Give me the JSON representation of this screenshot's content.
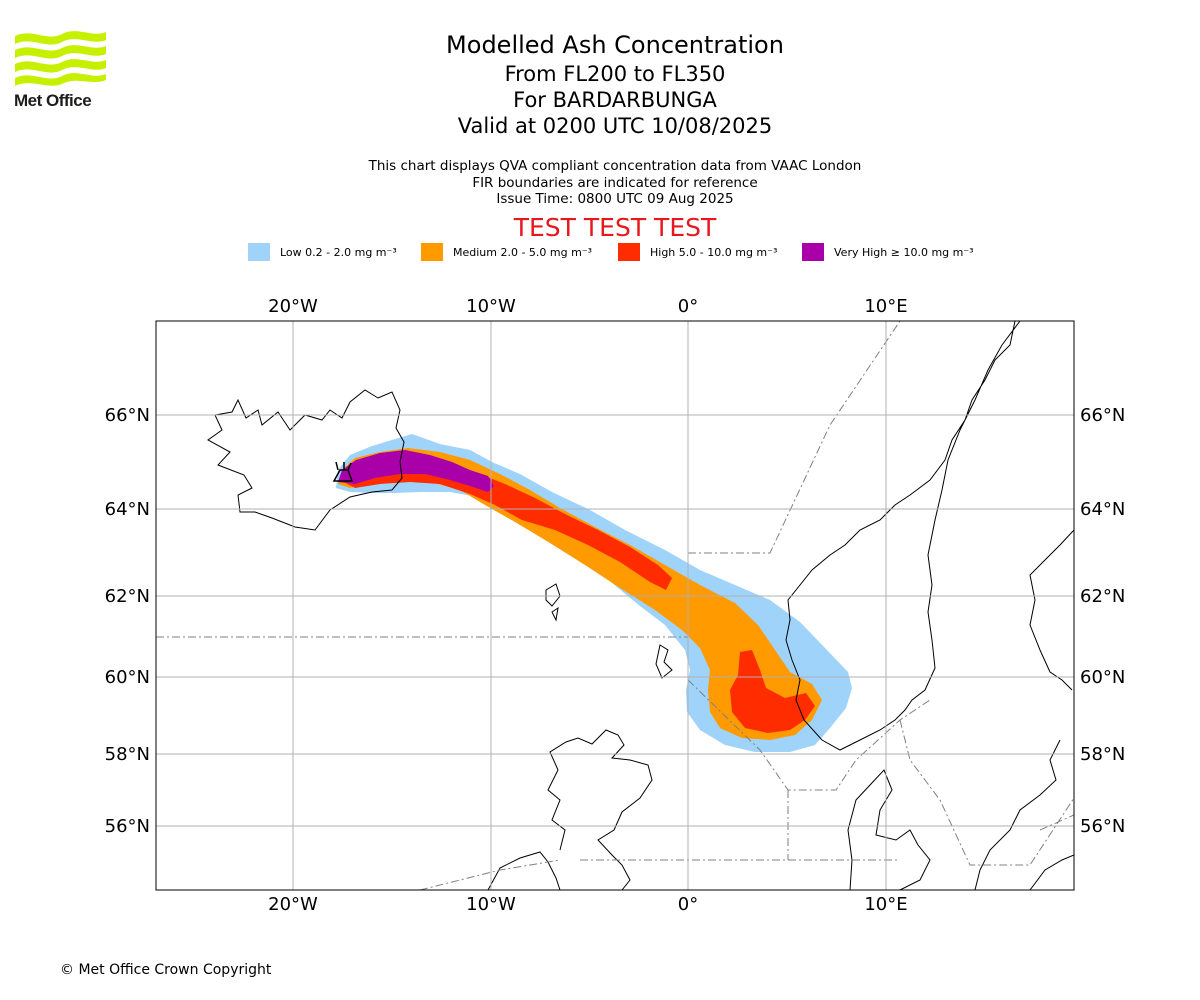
{
  "header": {
    "logo_text": "Met Office",
    "title": "Modelled Ash Concentration",
    "level_range": "From FL200 to FL350",
    "volcano": "For BARDARBUNGA",
    "valid_time": "Valid at 0200 UTC 10/08/2025"
  },
  "notes": {
    "line1": "This chart displays QVA compliant concentration data from VAAC London",
    "line2": "FIR boundaries are indicated for reference",
    "line3": "Issue Time: 0800 UTC 09 Aug 2025"
  },
  "banner": "TEST TEST TEST",
  "legend": [
    {
      "label": "Low 0.2 - 2.0 mg m⁻³",
      "color": "#a0d3fa"
    },
    {
      "label": "Medium 2.0 - 5.0 mg m⁻³",
      "color": "#ff9a00"
    },
    {
      "label": "High 5.0 - 10.0 mg m⁻³",
      "color": "#ff2c00"
    },
    {
      "label": "Very High ≥ 10.0 mg m⁻³",
      "color": "#aa00aa"
    }
  ],
  "map": {
    "lon_labels": [
      "20°W",
      "10°W",
      "0°",
      "10°E"
    ],
    "lat_labels": [
      "66°N",
      "64°N",
      "62°N",
      "60°N",
      "58°N",
      "56°N"
    ],
    "volcano_icon": "volcano-icon"
  },
  "footer": {
    "copyright": "© Met Office Crown Copyright"
  }
}
